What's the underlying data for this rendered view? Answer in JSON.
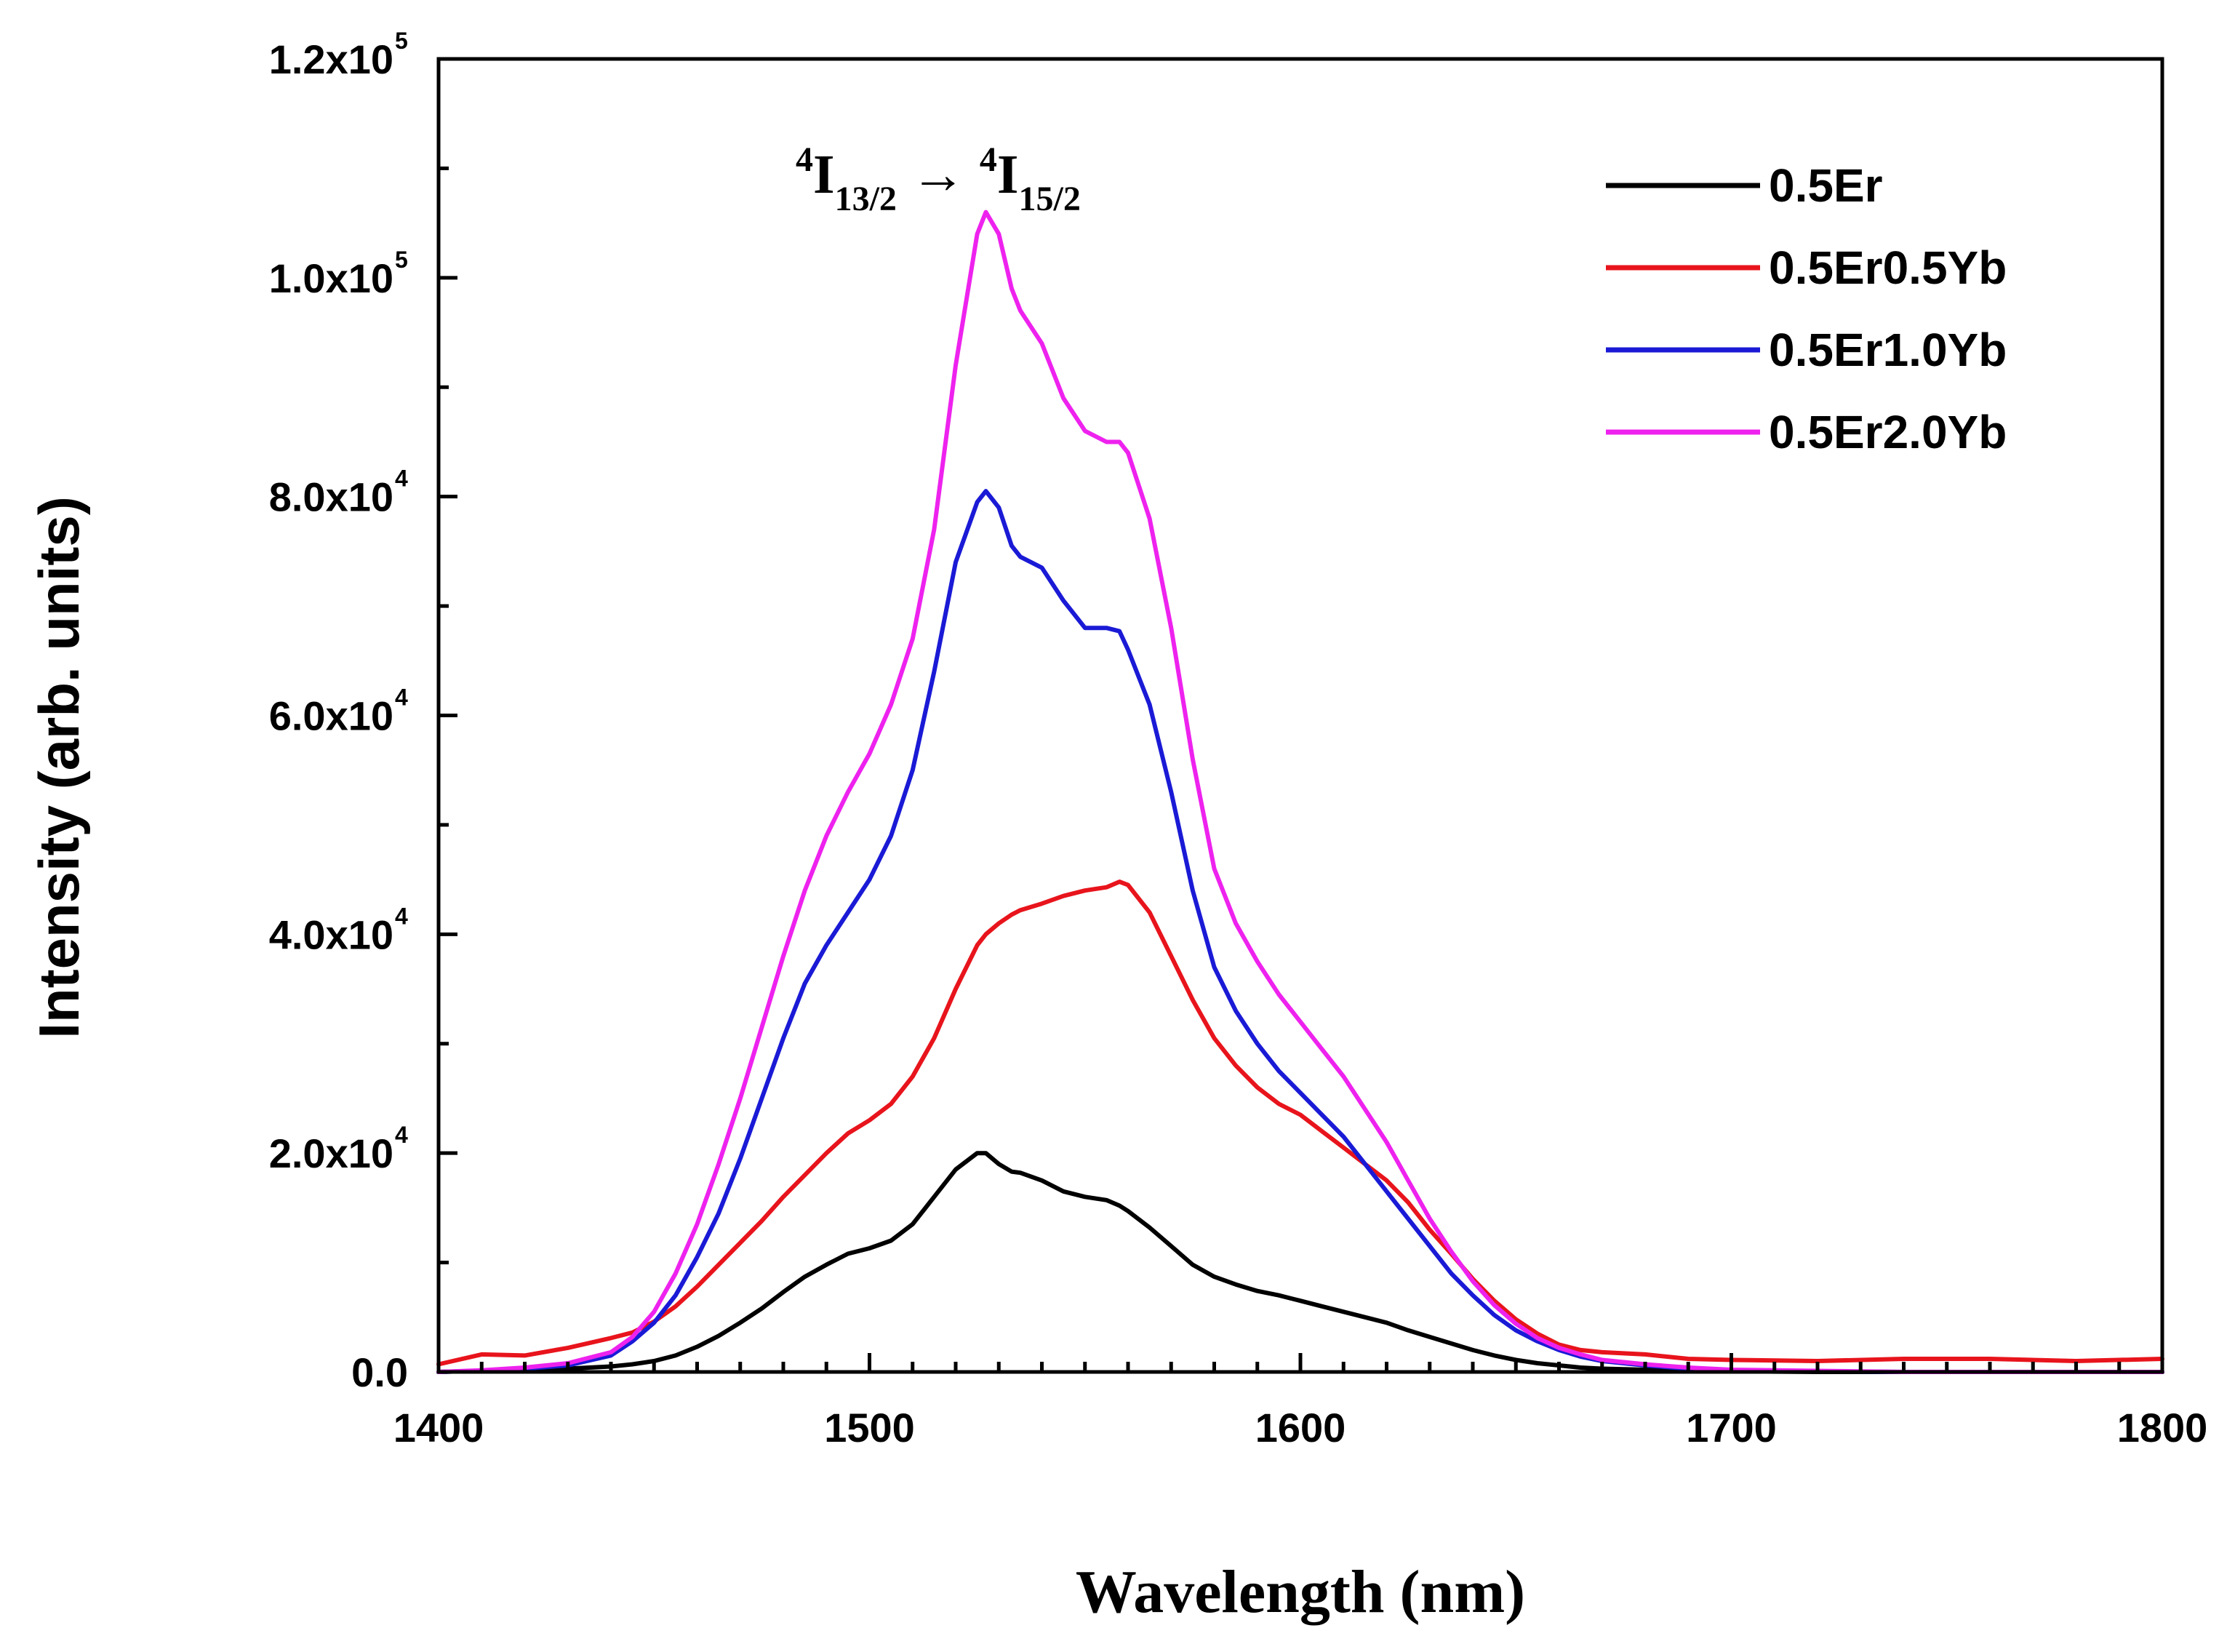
{
  "chart_data": {
    "type": "line",
    "title": "",
    "xlabel": "Wavelength (nm)",
    "ylabel": "Intensity (arb. units)",
    "xlim": [
      1400,
      1800
    ],
    "ylim": [
      0,
      120000
    ],
    "xticks": [
      1400,
      1500,
      1600,
      1700,
      1800
    ],
    "xtick_labels": [
      "1400",
      "1500",
      "1600",
      "1700",
      "1800"
    ],
    "yticks": [
      0,
      20000,
      40000,
      60000,
      80000,
      100000,
      120000
    ],
    "ytick_labels": [
      {
        "mantissa": "0.0",
        "exponent": ""
      },
      {
        "mantissa": "2.0x10",
        "exponent": "4"
      },
      {
        "mantissa": "4.0x10",
        "exponent": "4"
      },
      {
        "mantissa": "6.0x10",
        "exponent": "4"
      },
      {
        "mantissa": "8.0x10",
        "exponent": "4"
      },
      {
        "mantissa": "1.0x10",
        "exponent": "5"
      },
      {
        "mantissa": "1.2x10",
        "exponent": "5"
      }
    ],
    "grid": false,
    "legend_position": "top-right",
    "annotation": {
      "text_parts": [
        {
          "text": "4",
          "style": "sup"
        },
        {
          "text": "I",
          "style": "normal"
        },
        {
          "text": "13/2",
          "style": "sub"
        },
        {
          "text": " → ",
          "style": "normal"
        },
        {
          "text": "4",
          "style": "sup"
        },
        {
          "text": "I",
          "style": "normal"
        },
        {
          "text": "15/2",
          "style": "sub"
        }
      ],
      "x": 1527,
      "y": 112000
    },
    "x": [
      1400,
      1410,
      1420,
      1430,
      1440,
      1445,
      1450,
      1455,
      1460,
      1465,
      1470,
      1475,
      1480,
      1485,
      1490,
      1495,
      1500,
      1505,
      1510,
      1515,
      1520,
      1525,
      1527,
      1530,
      1533,
      1535,
      1540,
      1545,
      1550,
      1555,
      1558,
      1560,
      1565,
      1570,
      1575,
      1580,
      1585,
      1590,
      1595,
      1600,
      1605,
      1610,
      1615,
      1620,
      1625,
      1630,
      1635,
      1640,
      1645,
      1650,
      1655,
      1660,
      1665,
      1670,
      1680,
      1690,
      1700,
      1720,
      1740,
      1760,
      1780,
      1800
    ],
    "series": [
      {
        "name": "0.5Er",
        "color": "#000000",
        "values": [
          0,
          100,
          200,
          300,
          500,
          700,
          1000,
          1500,
          2300,
          3300,
          4500,
          5800,
          7300,
          8700,
          9800,
          10800,
          11300,
          12000,
          13500,
          16000,
          18500,
          20000,
          20000,
          19000,
          18300,
          18200,
          17500,
          16500,
          16000,
          15700,
          15200,
          14700,
          13200,
          11500,
          9800,
          8700,
          8000,
          7400,
          7000,
          6500,
          6000,
          5500,
          5000,
          4500,
          3800,
          3200,
          2600,
          2000,
          1500,
          1100,
          800,
          600,
          400,
          300,
          200,
          100,
          50,
          0,
          0,
          0,
          0,
          0
        ]
      },
      {
        "name": "0.5Er0.5Yb",
        "color": "#e8141c",
        "values": [
          700,
          1600,
          1500,
          2200,
          3100,
          3600,
          4600,
          6000,
          7800,
          9800,
          11800,
          13800,
          16000,
          18000,
          20000,
          21800,
          23000,
          24500,
          27000,
          30500,
          35000,
          39000,
          40000,
          41000,
          41800,
          42200,
          42800,
          43500,
          44000,
          44300,
          44800,
          44500,
          42000,
          38000,
          34000,
          30500,
          28000,
          26000,
          24500,
          23500,
          22000,
          20500,
          19000,
          17500,
          15500,
          13000,
          10800,
          8500,
          6500,
          4800,
          3500,
          2500,
          2000,
          1800,
          1600,
          1200,
          1100,
          1000,
          1200,
          1200,
          1000,
          1200
        ]
      },
      {
        "name": "0.5Er1.0Yb",
        "color": "#1a1ad6",
        "values": [
          0,
          100,
          300,
          600,
          1500,
          2800,
          4500,
          7000,
          10500,
          14500,
          19500,
          25000,
          30500,
          35500,
          39000,
          42000,
          45000,
          49000,
          55000,
          64000,
          74000,
          79500,
          80500,
          79000,
          75500,
          74500,
          73500,
          70500,
          68000,
          68000,
          67700,
          66000,
          61000,
          53000,
          44000,
          37000,
          33000,
          30000,
          27500,
          25500,
          23500,
          21500,
          19000,
          16500,
          14000,
          11500,
          9000,
          7000,
          5200,
          3800,
          2800,
          2000,
          1400,
          1000,
          600,
          300,
          150,
          50,
          0,
          0,
          0,
          0
        ]
      },
      {
        "name": "0.5Er2.0Yb",
        "color": "#ee22ee",
        "values": [
          0,
          150,
          400,
          800,
          1800,
          3200,
          5500,
          9000,
          13500,
          19000,
          25000,
          31500,
          38000,
          44000,
          49000,
          53000,
          56500,
          61000,
          67000,
          77000,
          92000,
          104000,
          106000,
          104000,
          99000,
          97000,
          94000,
          89000,
          86000,
          85000,
          85000,
          84000,
          78000,
          68000,
          56000,
          46000,
          41000,
          37500,
          34500,
          32000,
          29500,
          27000,
          24000,
          21000,
          17500,
          14000,
          11000,
          8300,
          6100,
          4400,
          3100,
          2200,
          1600,
          1100,
          700,
          400,
          200,
          100,
          0,
          0,
          0,
          0
        ]
      }
    ]
  }
}
